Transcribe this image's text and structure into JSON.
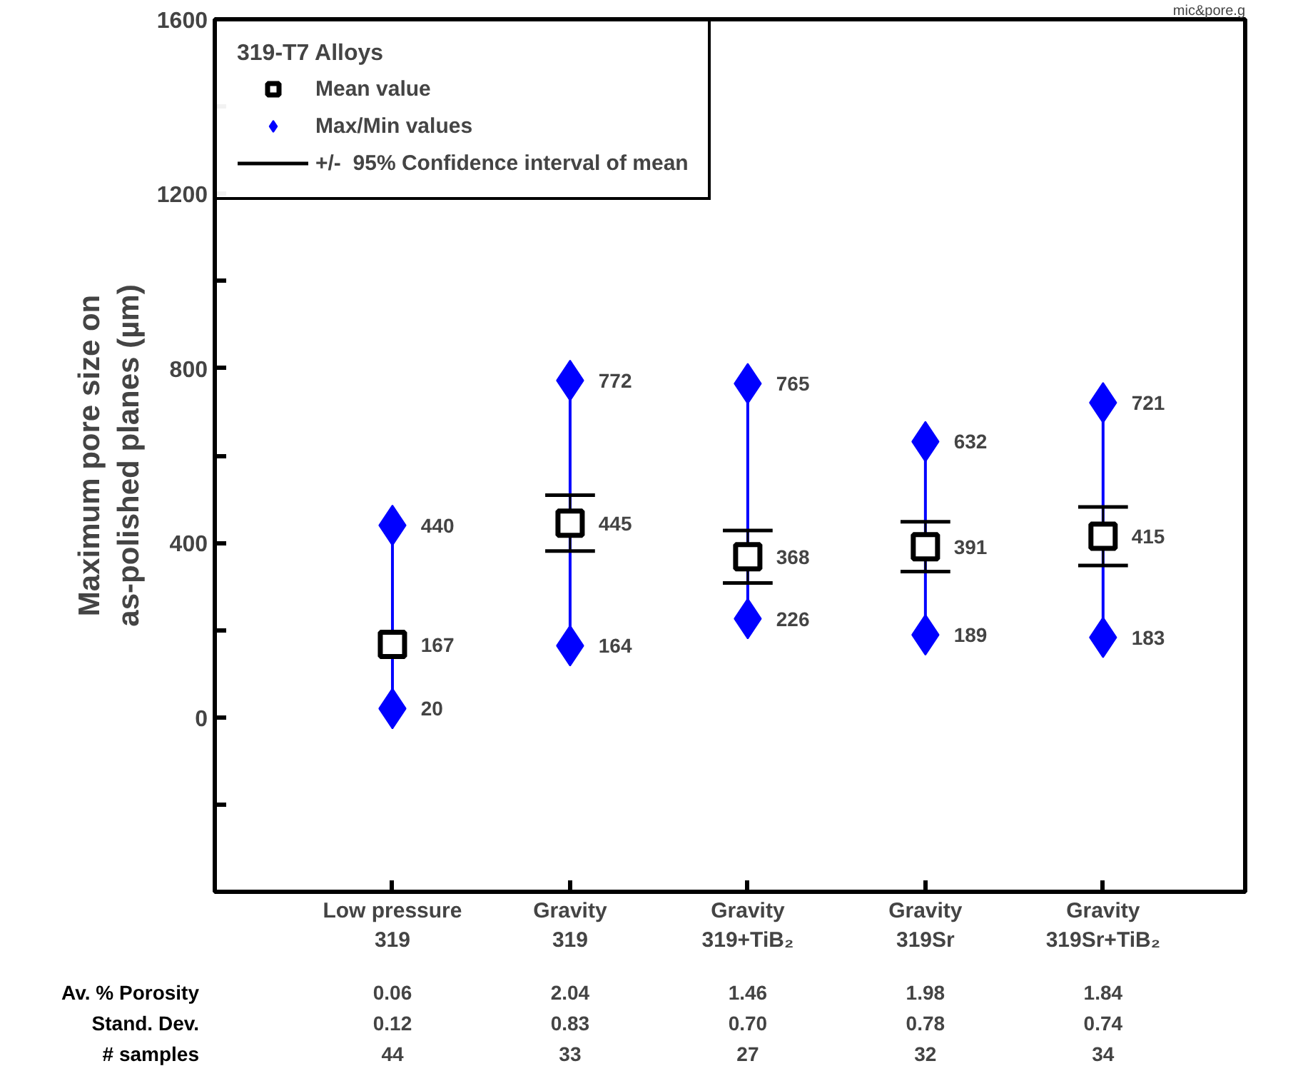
{
  "chart_data": {
    "type": "scatter",
    "categories": [
      "Low pressure\n319",
      "Gravity\n319",
      "Gravity\n319+TiB₂",
      "Gravity\n319Sr",
      "Gravity\n319Sr+TiB₂"
    ],
    "ylabel": "Maximum pore size on\nas-polished planes (µm)",
    "legend_title": "319-T7 Alloys",
    "series": [
      {
        "name": "Mean value",
        "color": "#000000",
        "marker": "square",
        "values": [
          167,
          445,
          368,
          391,
          415
        ],
        "errors": [
          null,
          64,
          60,
          57,
          67
        ]
      },
      {
        "name": "Max/Min values",
        "color": "#0000ff",
        "marker": "diamond",
        "values": [
          440,
          772,
          765,
          632,
          721
        ]
      },
      {
        "color": "#0000ff",
        "marker": "diamond",
        "values": [
          20,
          164,
          226,
          189,
          183
        ]
      }
    ],
    "ylim": [
      -400,
      1600
    ],
    "yticks": [
      {
        "value": -400,
        "label": null
      },
      {
        "value": -200,
        "label": null
      },
      0,
      {
        "value": 200,
        "label": null
      },
      400,
      {
        "value": 600,
        "label": null
      },
      800,
      {
        "value": 1000,
        "label": null
      },
      1200,
      {
        "value": 1400,
        "label": null
      },
      1600
    ],
    "data_labels": true,
    "legend": "top left",
    "grid": false,
    "annotations": [
      "+/-  95% Confidence interval of mean",
      "mic&pore.g",
      "Av. % Porosity",
      "0.06",
      "2.04",
      "1.46",
      "1.98",
      "1.84",
      "Stand. Dev.",
      "0.12",
      "0.83",
      "0.70",
      "0.78",
      "0.74",
      "# samples",
      "44",
      "33",
      "27",
      "32",
      "34"
    ]
  }
}
